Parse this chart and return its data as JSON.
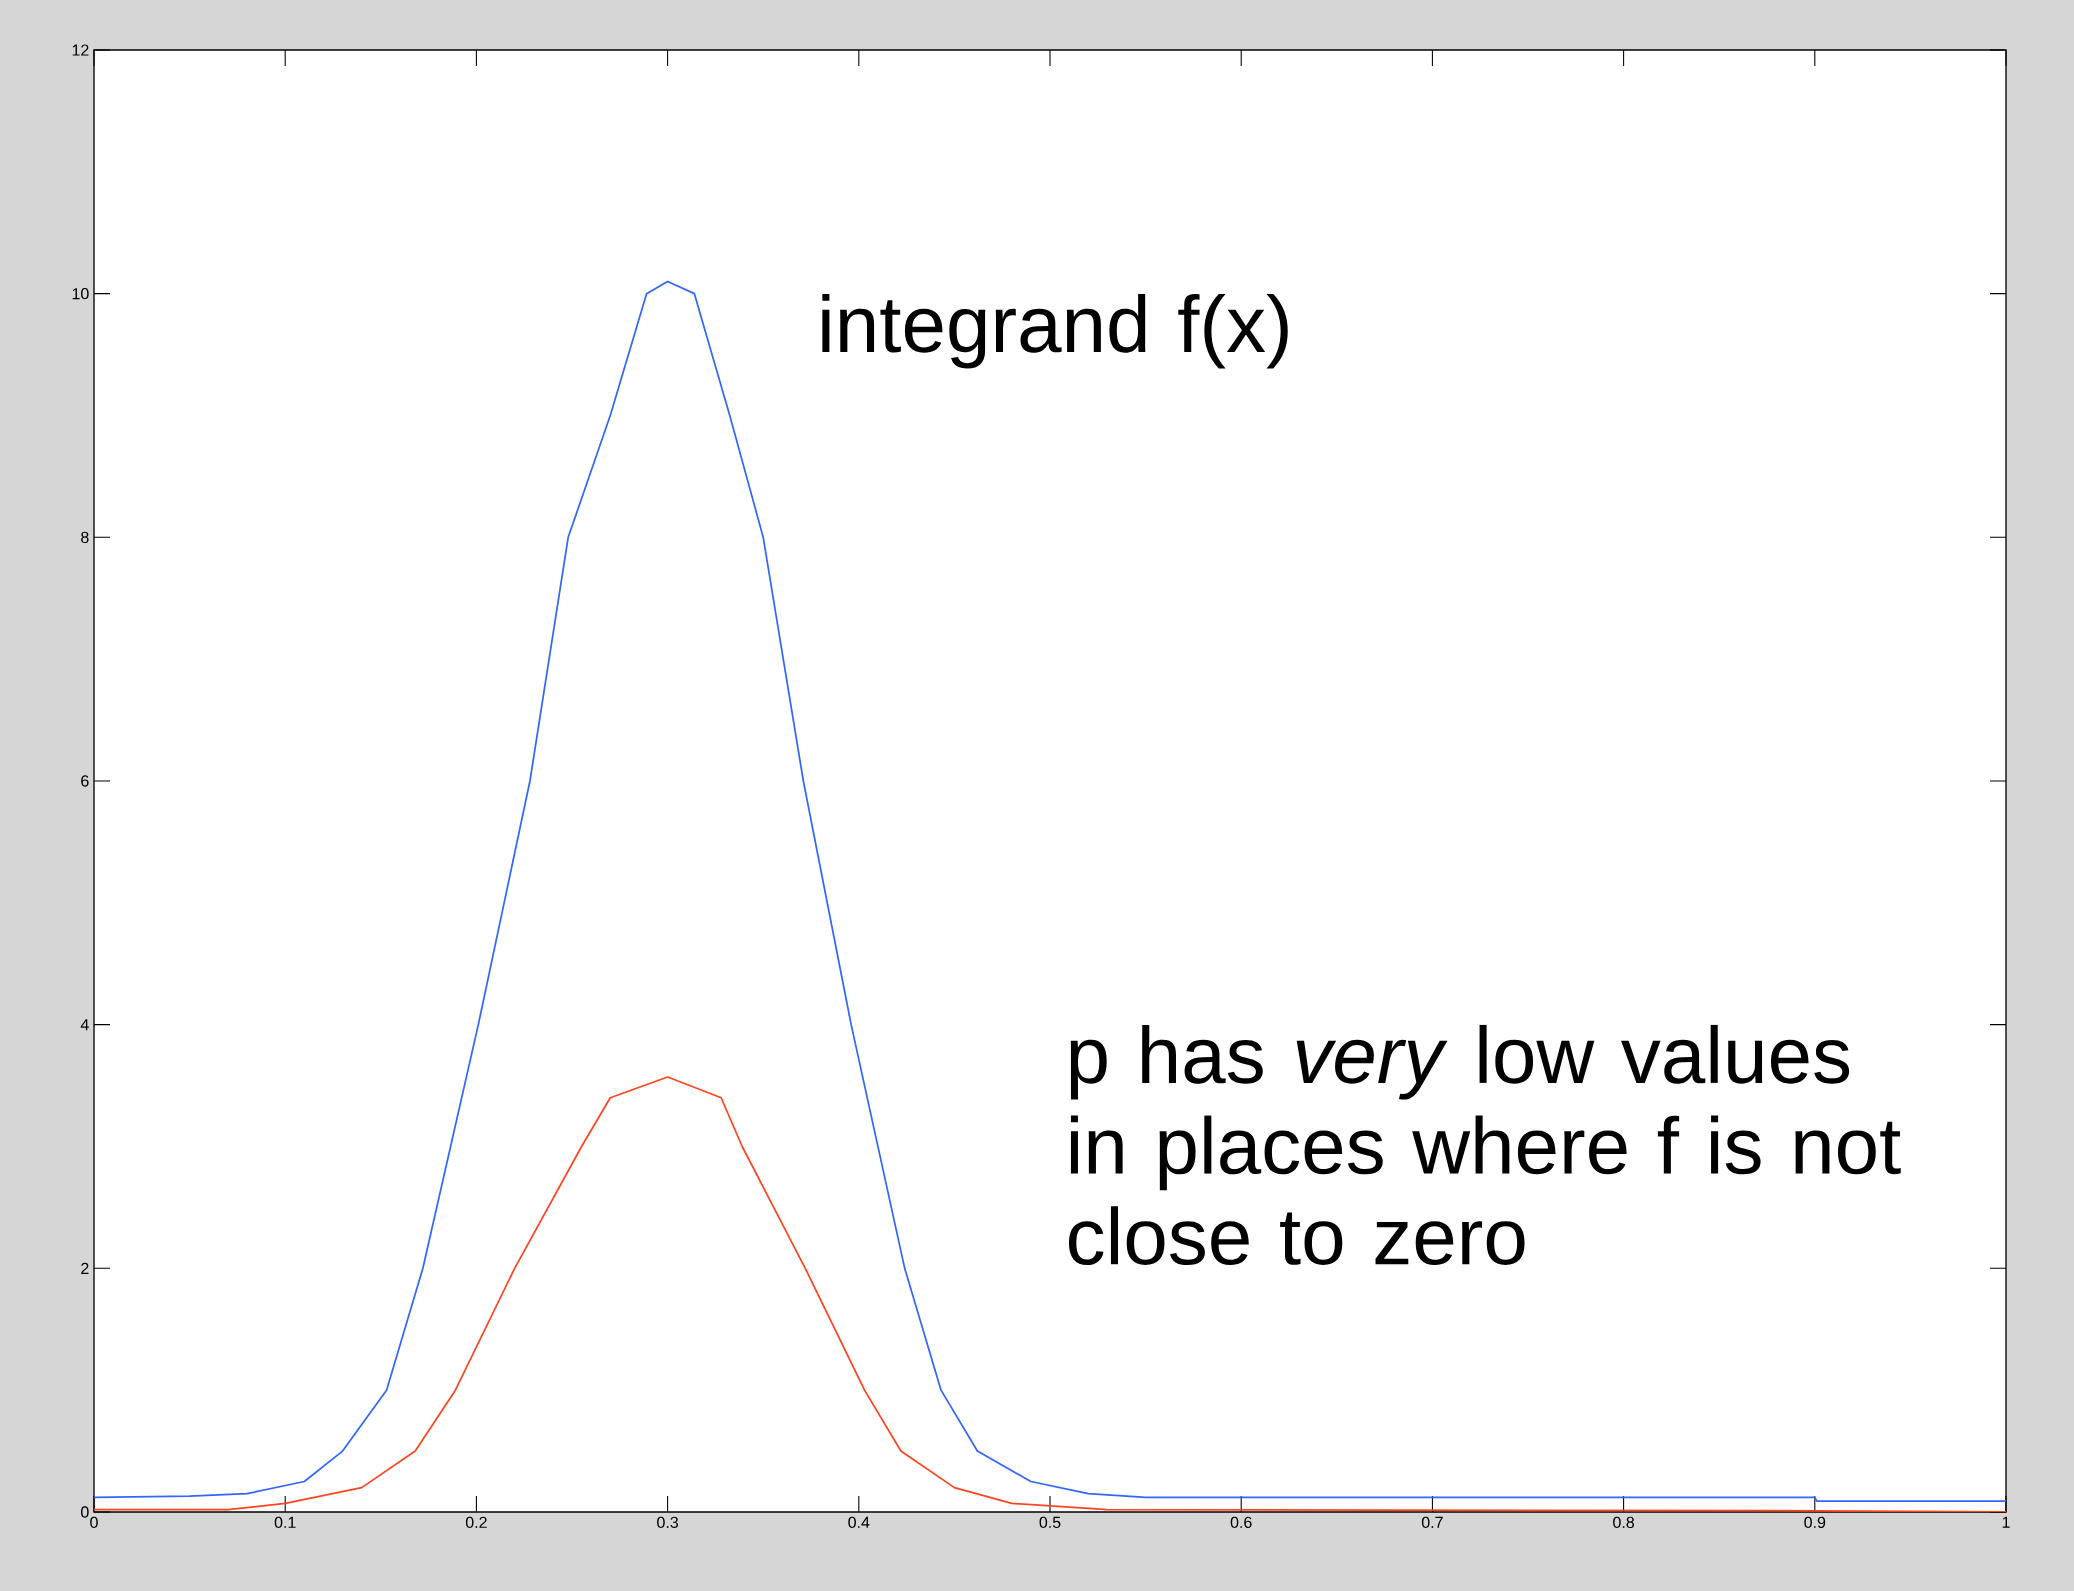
{
  "chart_data": {
    "type": "line",
    "xlim": [
      0,
      1
    ],
    "ylim": [
      0,
      12
    ],
    "xticks": [
      0,
      0.1,
      0.2,
      0.3,
      0.4,
      0.5,
      0.6,
      0.7,
      0.8,
      0.9,
      1
    ],
    "yticks": [
      0,
      2,
      4,
      6,
      8,
      10,
      12
    ],
    "grid": false,
    "marker": "none",
    "line_style": "solid",
    "series": [
      {
        "color": "#3366ff",
        "x": [
          0,
          0.05,
          0.08,
          0.11,
          0.13,
          0.153,
          0.172,
          0.201,
          0.228,
          0.248,
          0.27,
          0.289,
          0.3,
          0.314,
          0.3325,
          0.35,
          0.371,
          0.396,
          0.424,
          0.443,
          0.462,
          0.49,
          0.52,
          0.55,
          0.7,
          0.9,
          0.901,
          1
        ],
        "values": [
          0.12,
          0.13,
          0.15,
          0.25,
          0.5,
          1.0,
          2.0,
          4.0,
          6.0,
          8.0,
          9.0,
          10.0,
          10.1,
          10.0,
          9.0,
          8.0,
          6.0,
          4.0,
          2.0,
          1.0,
          0.5,
          0.25,
          0.15,
          0.12,
          0.12,
          0.12,
          0.09,
          0.09
        ]
      },
      {
        "color": "#ff4422",
        "x": [
          0,
          0.07,
          0.1,
          0.14,
          0.168,
          0.189,
          0.22,
          0.255,
          0.27,
          0.3,
          0.328,
          0.339,
          0.372,
          0.403,
          0.422,
          0.45,
          0.48,
          0.53,
          0.9,
          1
        ],
        "values": [
          0.02,
          0.02,
          0.07,
          0.2,
          0.5,
          1.0,
          2.0,
          3.0,
          3.4,
          3.57,
          3.4,
          3.0,
          2.0,
          1.0,
          0.5,
          0.2,
          0.07,
          0.02,
          0.01,
          0.0
        ]
      }
    ],
    "annotations": [
      "integrand f(x)",
      "p has *very* low values in places where f is not close to zero"
    ]
  }
}
